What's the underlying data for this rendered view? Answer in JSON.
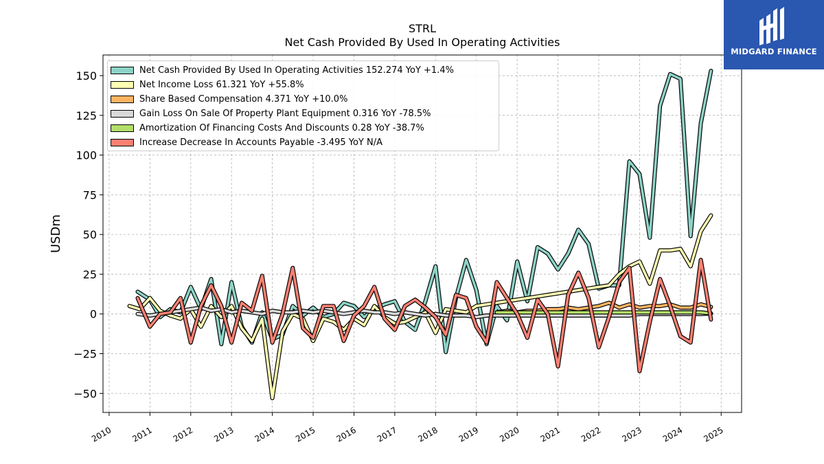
{
  "title": "STRL",
  "subtitle": "Net Cash Provided By Used In Operating Activities",
  "logo": {
    "text": "MIDGARD FINANCE",
    "color": "#2a57b0"
  },
  "chart_data": {
    "type": "line",
    "ylabel": "USDm",
    "xlabel": "",
    "xlim": [
      2009.85,
      2025.5
    ],
    "ylim": [
      -62,
      163
    ],
    "xticks": [
      "2010",
      "2011",
      "2012",
      "2013",
      "2014",
      "2015",
      "2016",
      "2017",
      "2018",
      "2019",
      "2020",
      "2021",
      "2022",
      "2023",
      "2024",
      "2025"
    ],
    "yticks": [
      -50,
      -25,
      0,
      25,
      50,
      75,
      100,
      125,
      150
    ],
    "grid": true,
    "legend_position": "top-left",
    "series": [
      {
        "name": "Net Cash Provided By Used In Operating Activities",
        "legend": "Net Cash Provided By Used In Operating Activities  152.274 YoY +1.4%",
        "color": "#8dd3c7",
        "x": [
          2010.7,
          2011.0,
          2011.25,
          2011.5,
          2011.75,
          2012.0,
          2012.25,
          2012.5,
          2012.75,
          2013.0,
          2013.25,
          2013.5,
          2013.75,
          2014.0,
          2014.25,
          2014.5,
          2014.75,
          2015.0,
          2015.25,
          2015.5,
          2015.75,
          2016.0,
          2016.25,
          2016.5,
          2016.75,
          2017.0,
          2017.25,
          2017.5,
          2017.75,
          2018.0,
          2018.25,
          2018.5,
          2018.75,
          2019.0,
          2019.25,
          2019.5,
          2019.75,
          2020.0,
          2020.25,
          2020.5,
          2020.75,
          2021.0,
          2021.25,
          2021.5,
          2021.75,
          2022.0,
          2022.25,
          2022.5,
          2022.75,
          2023.0,
          2023.25,
          2023.5,
          2023.75,
          2024.0,
          2024.25,
          2024.5,
          2024.75
        ],
        "y": [
          14,
          9,
          -2,
          3,
          1,
          17,
          3,
          22,
          -19,
          20,
          -8,
          -18,
          1,
          -16,
          -13,
          5,
          -1,
          4,
          -2,
          0,
          7,
          5,
          -2,
          3,
          6,
          8,
          -5,
          -10,
          8,
          30,
          -24,
          10,
          34,
          15,
          -19,
          5,
          -4,
          33,
          8,
          42,
          38,
          28,
          38,
          53,
          44,
          16,
          18,
          18,
          96,
          88,
          48,
          131,
          151,
          148,
          49,
          120,
          153
        ]
      },
      {
        "name": "Net Income Loss",
        "legend": "Net Income Loss  61.321 YoY +55.8%",
        "color": "#ffffb3",
        "x": [
          2010.5,
          2010.75,
          2011.0,
          2011.25,
          2011.5,
          2011.75,
          2012.0,
          2012.25,
          2012.5,
          2012.75,
          2013.0,
          2013.25,
          2013.5,
          2013.75,
          2014.0,
          2014.25,
          2014.5,
          2014.75,
          2015.0,
          2015.25,
          2015.5,
          2015.75,
          2016.0,
          2016.25,
          2016.5,
          2016.75,
          2017.0,
          2017.25,
          2017.5,
          2017.75,
          2018.0,
          2018.25,
          2018.5,
          2018.75,
          2019.0,
          2019.25,
          2019.5,
          2019.75,
          2020.0,
          2020.25,
          2020.5,
          2020.75,
          2021.0,
          2021.25,
          2021.5,
          2021.75,
          2022.0,
          2022.25,
          2022.5,
          2022.75,
          2023.0,
          2023.25,
          2023.5,
          2023.75,
          2024.0,
          2024.25,
          2024.5,
          2024.75
        ],
        "y": [
          5,
          3,
          10,
          2,
          -1,
          -3,
          3,
          -8,
          5,
          -2,
          5,
          -9,
          -17,
          -3,
          -53,
          -11,
          0,
          -3,
          -17,
          -3,
          -5,
          -10,
          -3,
          -7,
          5,
          -2,
          -6,
          -5,
          -2,
          1,
          -12,
          3,
          2,
          1,
          5,
          6,
          7,
          8,
          9,
          10,
          11,
          12,
          13,
          14,
          15,
          16,
          17,
          18,
          25,
          30,
          33,
          19,
          40,
          40,
          41,
          30,
          52,
          62
        ]
      },
      {
        "name": "Share Based Compensation",
        "legend": "Share Based Compensation  4.371 YoY +10.0%",
        "color": "#fdb462",
        "x": [
          2019.5,
          2019.75,
          2020.0,
          2020.25,
          2020.5,
          2020.75,
          2021.0,
          2021.25,
          2021.5,
          2021.75,
          2022.0,
          2022.25,
          2022.5,
          2022.75,
          2023.0,
          2023.25,
          2023.5,
          2023.75,
          2024.0,
          2024.25,
          2024.5,
          2024.75
        ],
        "y": [
          1,
          2,
          1,
          2,
          2,
          3,
          3,
          4,
          3,
          4,
          5,
          7,
          4,
          6,
          4,
          5,
          5,
          6,
          4,
          4,
          6,
          4.4
        ]
      },
      {
        "name": "Gain Loss On Sale Of Property Plant Equipment",
        "legend": "Gain Loss On Sale Of Property Plant Equipment  0.316 YoY -78.5%",
        "color": "#d9d9d9",
        "x": [
          2010.7,
          2011.0,
          2011.25,
          2011.5,
          2011.75,
          2012.0,
          2012.25,
          2012.5,
          2012.75,
          2013.0,
          2013.25,
          2013.5,
          2013.75,
          2014.0,
          2014.25,
          2014.5,
          2014.75,
          2015.0,
          2015.25,
          2015.5,
          2015.75,
          2016.0,
          2016.25,
          2016.5,
          2016.75,
          2017.0,
          2017.25,
          2017.5,
          2017.75,
          2018.0,
          2018.25,
          2018.5,
          2018.75,
          2019.0,
          2019.25,
          2019.5,
          2019.75,
          2020.0,
          2020.25,
          2020.5,
          2020.75,
          2021.0,
          2021.25,
          2021.5,
          2021.75,
          2022.0,
          2022.25,
          2022.5,
          2022.75,
          2023.0,
          2023.25,
          2023.5,
          2023.75,
          2024.0,
          2024.25,
          2024.5,
          2024.75
        ],
        "y": [
          0,
          -1,
          0,
          1,
          2,
          3,
          4,
          2,
          3,
          1,
          2,
          1,
          0,
          2,
          1,
          1,
          2,
          1,
          2,
          1,
          0,
          1,
          2,
          1,
          1,
          0,
          1,
          0,
          -1,
          0,
          -1,
          -1,
          -1,
          -2,
          -1,
          -1,
          -1,
          -1,
          -1,
          -1,
          -1,
          -1,
          -1,
          -1,
          -1,
          -1,
          -1,
          -1,
          -1,
          0,
          0,
          0,
          0,
          0,
          0,
          0,
          0.3
        ]
      },
      {
        "name": "Amortization Of Financing Costs And Discounts",
        "legend": "Amortization Of Financing Costs And Discounts  0.28 YoY -38.7%",
        "color": "#b3de69",
        "x": [
          2019.5,
          2019.75,
          2020.0,
          2020.25,
          2020.5,
          2020.75,
          2021.0,
          2021.25,
          2021.5,
          2021.75,
          2022.0,
          2022.25,
          2022.5,
          2022.75,
          2023.0,
          2023.25,
          2023.5,
          2023.75,
          2024.0,
          2024.25,
          2024.5,
          2024.75
        ],
        "y": [
          1,
          1,
          1,
          1,
          1,
          1,
          1,
          1,
          1,
          1,
          1,
          1,
          1,
          1,
          1,
          1,
          1,
          1,
          1,
          1,
          1,
          0.3
        ]
      },
      {
        "name": "Increase Decrease In Accounts Payable",
        "legend": "Increase Decrease In Accounts Payable  -3.495 YoY N/A",
        "color": "#fb8072",
        "x": [
          2010.7,
          2011.0,
          2011.25,
          2011.5,
          2011.75,
          2012.0,
          2012.25,
          2012.5,
          2012.75,
          2013.0,
          2013.25,
          2013.5,
          2013.75,
          2014.0,
          2014.25,
          2014.5,
          2014.75,
          2015.0,
          2015.25,
          2015.5,
          2015.75,
          2016.0,
          2016.25,
          2016.5,
          2016.75,
          2017.0,
          2017.25,
          2017.5,
          2017.75,
          2018.0,
          2018.25,
          2018.5,
          2018.75,
          2019.0,
          2019.25,
          2019.5,
          2019.75,
          2020.0,
          2020.25,
          2020.5,
          2020.75,
          2021.0,
          2021.25,
          2021.5,
          2021.75,
          2022.0,
          2022.25,
          2022.5,
          2022.75,
          2023.0,
          2023.25,
          2023.5,
          2023.75,
          2024.0,
          2024.25,
          2024.5,
          2024.75
        ],
        "y": [
          10,
          -8,
          0,
          1,
          10,
          -18,
          5,
          18,
          5,
          -18,
          7,
          2,
          24,
          -18,
          0,
          29,
          -9,
          -15,
          5,
          5,
          -17,
          -1,
          5,
          17,
          -3,
          -10,
          5,
          9,
          4,
          -2,
          -13,
          12,
          10,
          -8,
          -18,
          20,
          10,
          0,
          -15,
          9,
          0,
          -33,
          12,
          26,
          10,
          -21,
          -2,
          20,
          29,
          -36,
          -5,
          22,
          5,
          -14,
          -18,
          34,
          -3.5
        ]
      }
    ]
  }
}
